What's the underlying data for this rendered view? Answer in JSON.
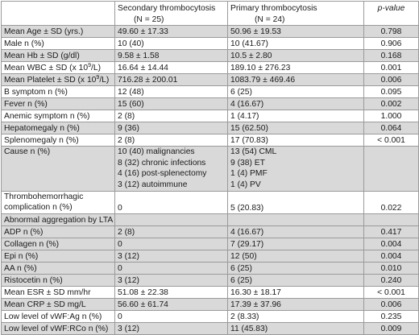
{
  "header": {
    "blank": "",
    "col_secondary": "Secondary thrombocytosis",
    "col_secondary_n": "(N = 25)",
    "col_primary": "Primary thrombocytosis",
    "col_primary_n": "(N = 24)",
    "col_pvalue": "p-value"
  },
  "rows": [
    {
      "label": "Mean Age ± SD (yrs.)",
      "secondary": "49.60 ± 17.33",
      "primary": "50.96 ± 19.53",
      "p": "0.798",
      "shade": true
    },
    {
      "label": "Male n (%)",
      "secondary": "10 (40)",
      "primary": "10 (41.67)",
      "p": "0.906",
      "shade": false
    },
    {
      "label": "Mean Hb ± SD (g/dl)",
      "secondary": "9.58 ± 1.58",
      "primary": "10.5 ± 2.80",
      "p": "0.168",
      "shade": true
    },
    {
      "label": "Mean WBC ± SD (x 10",
      "label_sup": "9",
      "label_tail": "/L)",
      "secondary": "16.64 ± 14.44",
      "primary": "189.10 ± 276.23",
      "p": "0.001",
      "shade": false
    },
    {
      "label": "Mean Platelet ± SD (x 10",
      "label_sup": "9",
      "label_tail": "/L)",
      "secondary": "716.28 ± 200.01",
      "primary": "1083.79 ± 469.46",
      "p": "0.006",
      "shade": true
    },
    {
      "label": "B symptom n (%)",
      "secondary": "12 (48)",
      "primary": "6 (25)",
      "p": "0.095",
      "shade": false
    },
    {
      "label": "Fever n (%)",
      "secondary": "15 (60)",
      "primary": "4 (16.67)",
      "p": "0.002",
      "shade": true
    },
    {
      "label": "Anemic symptom n (%)",
      "secondary": "2 (8)",
      "primary": "1 (4.17)",
      "p": "1.000",
      "shade": false
    },
    {
      "label": "Hepatomegaly n (%)",
      "secondary": "9 (36)",
      "primary": "15 (62.50)",
      "p": "0.064",
      "shade": true
    },
    {
      "label": "Splenomegaly n (%)",
      "secondary": "2 (8)",
      "primary": "17 (70.83)",
      "p": "< 0.001",
      "shade": false
    }
  ],
  "cause": {
    "label": "Cause n (%)",
    "secondary": [
      "10 (40) malignancies",
      "8 (32) chronic infections",
      "4 (16) post-splenectomy",
      "3 (12) autoimmune"
    ],
    "primary": [
      "13 (54) CML",
      "9 (38) ET",
      "1 (4) PMF",
      "1 (4) PV"
    ],
    "p": ""
  },
  "thrombo": {
    "label_1": "Thrombohemorrhagic",
    "label_2": "complication n (%)",
    "secondary": "0",
    "primary": "5 (20.83)",
    "p": "0.022"
  },
  "lta": {
    "label": "Abnormal aggregation by LTA",
    "rows": [
      {
        "label": "ADP n (%)",
        "secondary": "2 (8)",
        "primary": "4 (16.67)",
        "p": "0.417"
      },
      {
        "label": "Collagen n (%)",
        "secondary": "0",
        "primary": "7 (29.17)",
        "p": "0.004"
      },
      {
        "label": "Epi n (%)",
        "secondary": "3 (12)",
        "primary": "12 (50)",
        "p": "0.004"
      },
      {
        "label": "AA n (%)",
        "secondary": "0",
        "primary": "6 (25)",
        "p": "0.010"
      },
      {
        "label": "Ristocetin n (%)",
        "secondary": "3 (12)",
        "primary": "6 (25)",
        "p": "0.240"
      }
    ]
  },
  "tail_rows": [
    {
      "label": "Mean ESR ± SD mm/hr",
      "secondary": "51.08 ± 22.38",
      "primary": "16.30 ± 18.17",
      "p": "< 0.001"
    },
    {
      "label": "Mean CRP ± SD mg/L",
      "secondary": "56.60 ± 61.74",
      "primary": "17.39 ± 37.96",
      "p": "0.006"
    },
    {
      "label": "Low level of vWF:Ag n (%)",
      "secondary": "0",
      "primary": "2 (8.33)",
      "p": "0.235"
    },
    {
      "label": "Low level of vWF:RCo n (%)",
      "secondary": "3 (12)",
      "primary": "11 (45.83)",
      "p": "0.009"
    }
  ]
}
